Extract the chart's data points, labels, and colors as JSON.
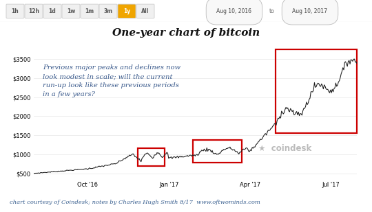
{
  "title": "One-year chart of bitcoin",
  "annotation": "Previous major peaks and declines now\nlook modest in scale; will the current\nrun-up look like these previous periods\nin a few years?",
  "footer": "chart courtesy of Coindesk; notes by Charles Hugh Smith 8/17  www.oftwominds.com",
  "coindesk_text": "coindesk",
  "date_from": "Aug 10, 2016",
  "date_to": "Aug 10, 2017",
  "nav_buttons": [
    "1h",
    "12h",
    "1d",
    "1w",
    "1m",
    "3m",
    "1y",
    "All"
  ],
  "active_button": "1y",
  "x_ticks": [
    "Oct '16",
    "Jan '17",
    "Apr '17",
    "Jul '17"
  ],
  "y_ticks": [
    "$500",
    "$1000",
    "$1500",
    "$2000",
    "$2500",
    "$3000",
    "$3500"
  ],
  "y_values": [
    500,
    1000,
    1500,
    2000,
    2500,
    3000,
    3500
  ],
  "bg_color": "#ffffff",
  "line_color": "#1a1a1a",
  "annotation_color": "#3a5a8c",
  "footer_color": "#3a6090",
  "grid_color": "#e8e8e8",
  "box_color": "#cc0000",
  "nav_bg": "#f0f0f0",
  "nav_active_bg": "#f0a500",
  "nav_active_text": "#ffffff",
  "nav_text": "#555555",
  "nav_border": "#cccccc"
}
